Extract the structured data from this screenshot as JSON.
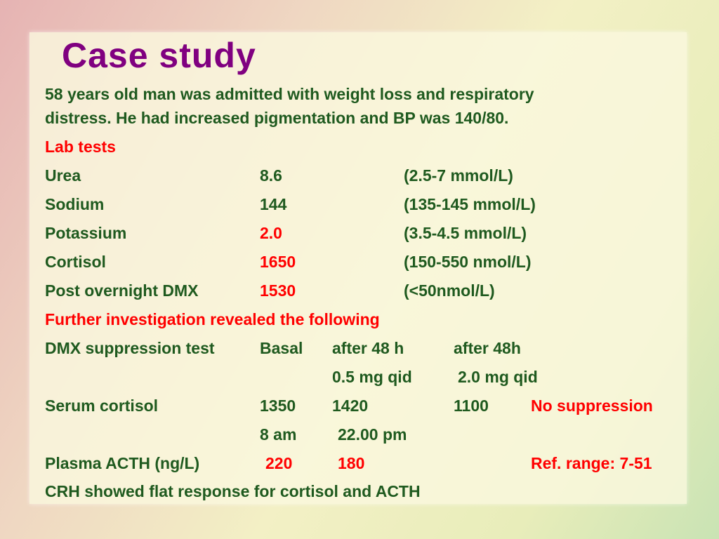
{
  "title": "Case study",
  "intro_line1": "58 years old man was admitted with weight loss and respiratory",
  "intro_line2": "distress. He had increased pigmentation and BP was 140/80.",
  "lab_heading": "Lab tests",
  "labs": [
    {
      "name": "Urea",
      "value": "8.6",
      "range": "(2.5-7 mmol/L)"
    },
    {
      "name": "Sodium",
      "value": "144",
      "range": "(135-145 mmol/L)"
    },
    {
      "name": "Potassium",
      "value": "2.0",
      "range": "(3.5-4.5 mmol/L)"
    },
    {
      "name": "Cortisol",
      "value": "1650",
      "range": "(150-550 nmol/L)"
    },
    {
      "name": "Post overnight DMX",
      "value": "1530",
      "range": "(<50nmol/L)"
    }
  ],
  "further_heading": "Further investigation revealed the following",
  "dmx": {
    "label": "DMX suppression test",
    "basal": "Basal",
    "after48_1": "after 48 h",
    "after48_2": "after 48h",
    "dose1": "0.5 mg qid",
    "dose2": "2.0 mg qid"
  },
  "serum": {
    "label": "Serum cortisol",
    "basal": "1350",
    "v1": "1420",
    "v2": "1100",
    "note": "No suppression"
  },
  "times": {
    "t1": "8 am",
    "t2": "22.00 pm"
  },
  "acth": {
    "label": "Plasma ACTH (ng/L)",
    "v1": "220",
    "v2": "180",
    "ref": "Ref. range: 7-51"
  },
  "crh": "CRH showed flat response for cortisol and ACTH",
  "colors": {
    "title": "#800080",
    "text": "#1f5a1f",
    "highlight": "#ff0000"
  }
}
